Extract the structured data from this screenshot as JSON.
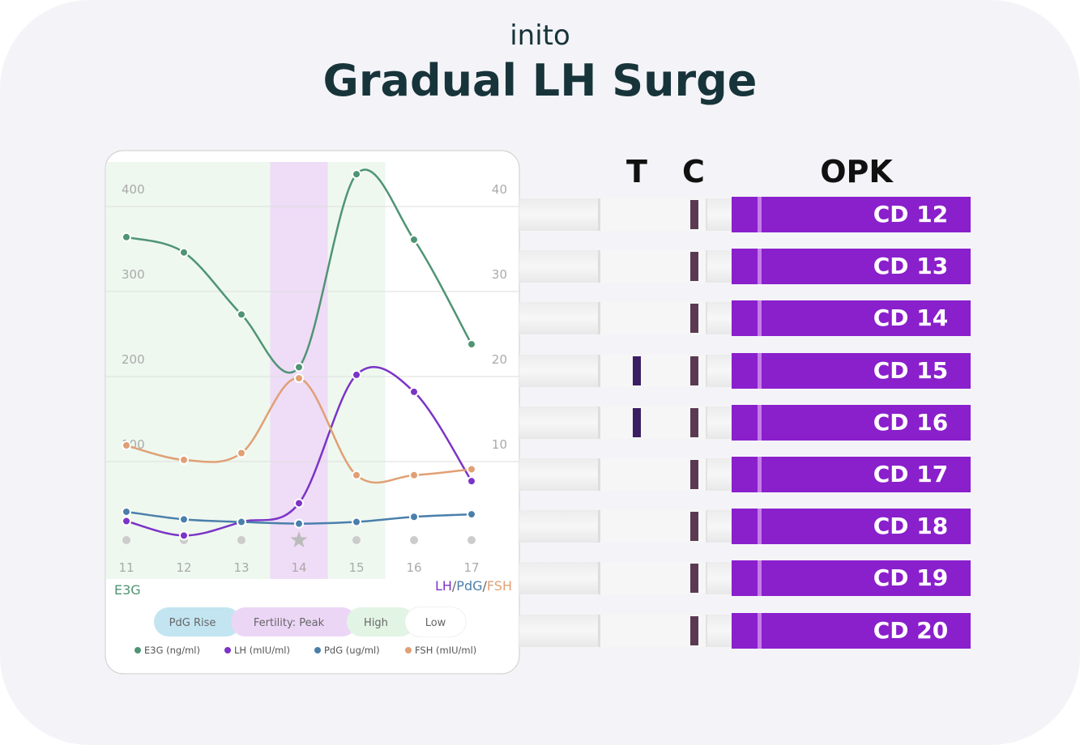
{
  "header": {
    "brand": "inito",
    "title": "Gradual LH Surge"
  },
  "chart_data": {
    "type": "line",
    "categories": [
      "11",
      "12",
      "13",
      "14",
      "15",
      "16",
      "17"
    ],
    "ylabel": "E3G",
    "y2label": [
      "LH",
      "/",
      "PdG",
      "/",
      "FSH"
    ],
    "ylim": [
      0,
      450
    ],
    "yticks": [
      100,
      200,
      300,
      400
    ],
    "y2lim": [
      0,
      45
    ],
    "y2ticks": [
      10,
      20,
      30,
      40
    ],
    "grid": true,
    "series": [
      {
        "name": "E3G (ng/ml)",
        "color": "#4f9474",
        "values": [
          364,
          346,
          273,
          211,
          438,
          361,
          238
        ]
      },
      {
        "name": "LH (mIU/ml)",
        "color": "#7b34c6",
        "axis": "y2",
        "values": [
          3.0,
          1.3,
          2.9,
          5.1,
          20.2,
          18.2,
          7.7
        ]
      },
      {
        "name": "PdG (ug/ml)",
        "color": "#4a7fab",
        "axis": "y2",
        "values": [
          4.1,
          3.2,
          2.9,
          2.7,
          2.9,
          3.5,
          3.8
        ]
      },
      {
        "name": "FSH (mIU/ml)",
        "color": "#e0a074",
        "axis": "y2",
        "values": [
          11.9,
          10.2,
          11.0,
          19.8,
          8.4,
          8.4,
          9.1
        ]
      }
    ],
    "phases": [
      {
        "label": "PdG Rise",
        "color": "#c2e5f1"
      },
      {
        "label": "Fertility: Peak",
        "color": "#ecd6f6"
      },
      {
        "label": "High",
        "color": "#e2f4e4"
      },
      {
        "label": "Low",
        "color": "#ffffff"
      }
    ],
    "category_phase": [
      2,
      2,
      2,
      1,
      2,
      3,
      3
    ]
  },
  "strips": {
    "headers": [
      "T",
      "C",
      "OPK"
    ],
    "items": [
      {
        "label": "CD 12",
        "test_line": false
      },
      {
        "label": "CD 13",
        "test_line": false
      },
      {
        "label": "CD 14",
        "test_line": false
      },
      {
        "label": "CD 15",
        "test_line": true
      },
      {
        "label": "CD 16",
        "test_line": true
      },
      {
        "label": "CD 17",
        "test_line": false
      },
      {
        "label": "CD 18",
        "test_line": false
      },
      {
        "label": "CD 19",
        "test_line": false
      },
      {
        "label": "CD 20",
        "test_line": false
      }
    ]
  }
}
